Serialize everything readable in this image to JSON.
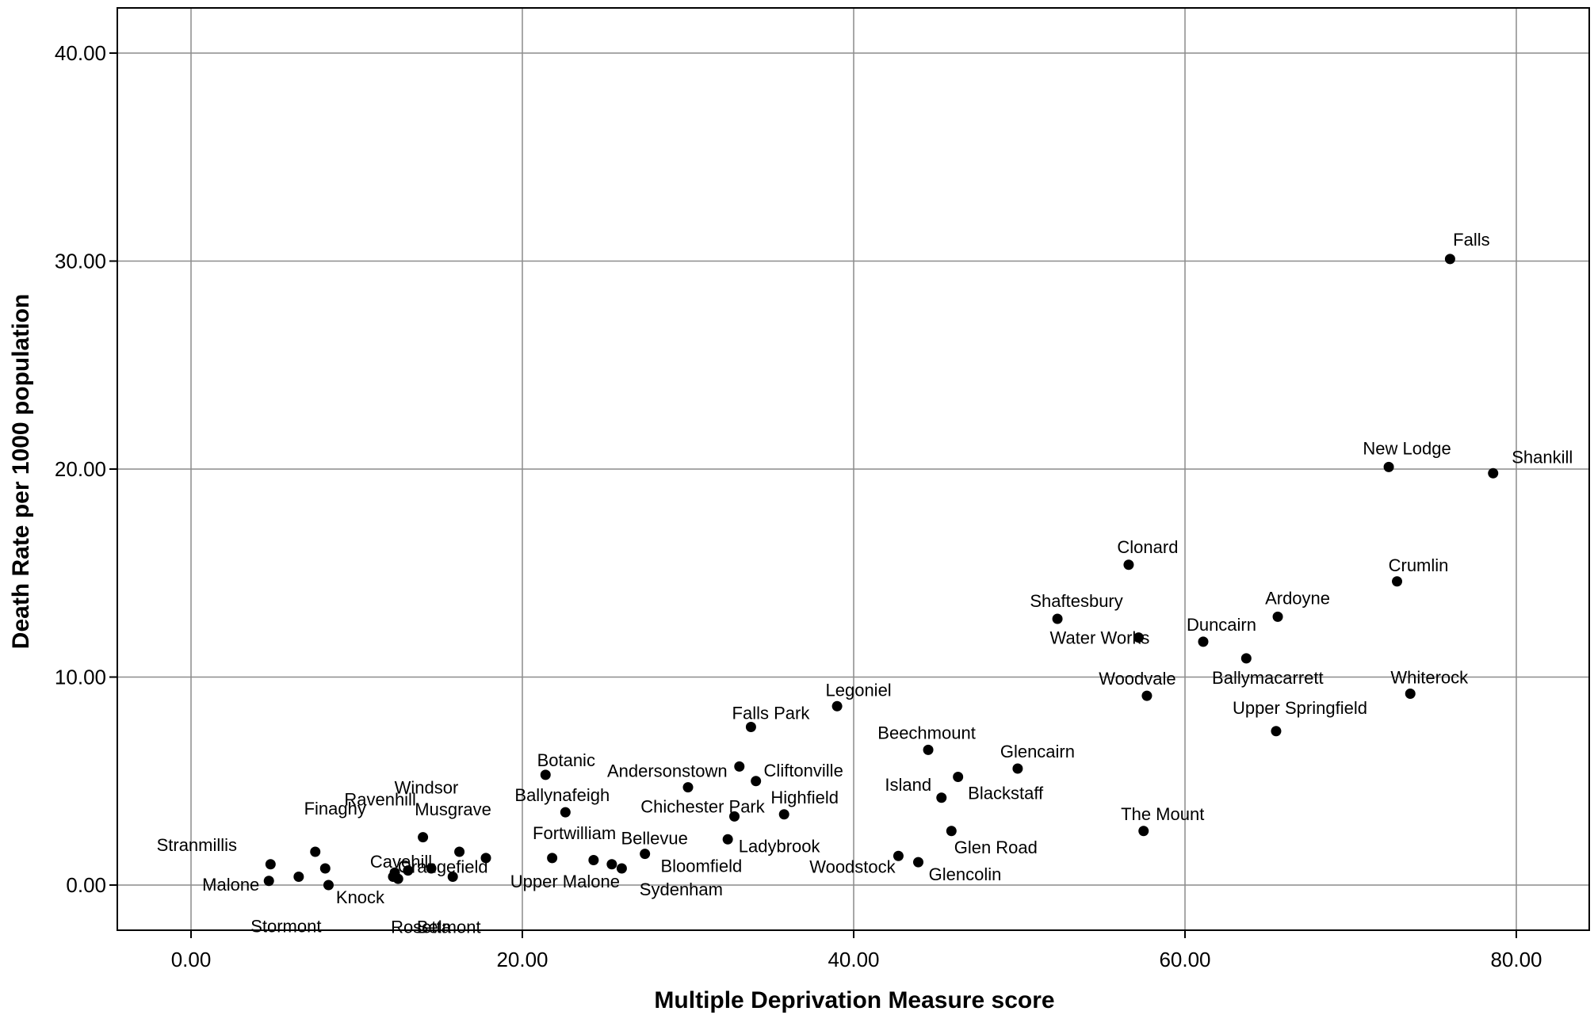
{
  "chart_data": {
    "type": "scatter",
    "title": "",
    "xlabel": "Multiple Deprivation Measure score",
    "ylabel": "Death Rate per 1000 population",
    "xlim": [
      -4.5,
      84.5
    ],
    "ylim": [
      -2.2,
      42.2
    ],
    "xticks": [
      0,
      20,
      40,
      60,
      80
    ],
    "yticks": [
      0,
      10,
      20,
      30,
      40
    ],
    "xtick_labels": [
      "0.00",
      "20.00",
      "40.00",
      "60.00",
      "80.00"
    ],
    "ytick_labels": [
      "0.00",
      "10.00",
      "20.00",
      "30.00",
      "40.00"
    ],
    "grid": true,
    "marker_color": "#000000",
    "points": [
      {
        "name": "Falls",
        "x": 76.0,
        "y": 30.1
      },
      {
        "name": "New Lodge",
        "x": 72.3,
        "y": 20.1
      },
      {
        "name": "Shankill",
        "x": 78.6,
        "y": 19.8
      },
      {
        "name": "Crumlin",
        "x": 72.8,
        "y": 14.6
      },
      {
        "name": "Clonard",
        "x": 56.6,
        "y": 15.4
      },
      {
        "name": "Ardoyne",
        "x": 65.6,
        "y": 12.9
      },
      {
        "name": "Shaftesbury",
        "x": 52.3,
        "y": 12.8
      },
      {
        "name": "Water Works",
        "x": 57.2,
        "y": 11.9
      },
      {
        "name": "Duncairn",
        "x": 61.1,
        "y": 11.7
      },
      {
        "name": "Ballymacarrett",
        "x": 63.7,
        "y": 10.9
      },
      {
        "name": "Woodvale",
        "x": 57.7,
        "y": 9.1
      },
      {
        "name": "Whiterock",
        "x": 73.6,
        "y": 9.2
      },
      {
        "name": "Upper Springfield",
        "x": 65.5,
        "y": 7.4
      },
      {
        "name": "Legoniel",
        "x": 39.0,
        "y": 8.6
      },
      {
        "name": "Falls Park",
        "x": 33.8,
        "y": 7.6
      },
      {
        "name": "Beechmount",
        "x": 44.5,
        "y": 6.5
      },
      {
        "name": "Glencairn",
        "x": 49.9,
        "y": 5.6
      },
      {
        "name": "Island",
        "x": 45.3,
        "y": 4.2
      },
      {
        "name": "Blackstaff",
        "x": 46.3,
        "y": 5.2
      },
      {
        "name": "The Mount",
        "x": 57.5,
        "y": 2.6
      },
      {
        "name": "Glen Road",
        "x": 45.9,
        "y": 2.6
      },
      {
        "name": "Glencolin",
        "x": 43.9,
        "y": 1.1
      },
      {
        "name": "Woodstock",
        "x": 42.7,
        "y": 1.4
      },
      {
        "name": "Andersonstown",
        "x": 33.1,
        "y": 5.7
      },
      {
        "name": "Cliftonville",
        "x": 34.1,
        "y": 5.0
      },
      {
        "name": "Highfield",
        "x": 35.8,
        "y": 3.4
      },
      {
        "name": "Chichester Park",
        "x": 32.8,
        "y": 3.3
      },
      {
        "name": "Ladybrook",
        "x": 32.4,
        "y": 2.2
      },
      {
        "name": "Botanic",
        "x": 21.4,
        "y": 5.3
      },
      {
        "name": "Windsor",
        "x": 30.0,
        "y": 4.7
      },
      {
        "name": "Ballynafeigh",
        "x": 22.6,
        "y": 3.5
      },
      {
        "name": "Fortwilliam",
        "x": 21.8,
        "y": 1.3
      },
      {
        "name": "Bellevue",
        "x": 27.4,
        "y": 1.5
      },
      {
        "name": "Bloomfield",
        "x": 24.3,
        "y": 1.2
      },
      {
        "name": "Upper Malone",
        "x": 25.4,
        "y": 1.0
      },
      {
        "name": "Sydenham",
        "x": 26.0,
        "y": 0.8
      },
      {
        "name": "Ravenhill",
        "x": 14.0,
        "y": 2.3
      },
      {
        "name": "Musgrave",
        "x": 16.2,
        "y": 1.6
      },
      {
        "name": "Finaghy",
        "x": 7.5,
        "y": 1.6
      },
      {
        "name": "Cavehill",
        "x": 17.8,
        "y": 1.3
      },
      {
        "name": "Orangefield",
        "x": 13.1,
        "y": 0.7
      },
      {
        "name": "Stranmillis",
        "x": 4.8,
        "y": 1.0
      },
      {
        "name": "Malone",
        "x": 4.7,
        "y": 0.2
      },
      {
        "name": "Knock",
        "x": 8.3,
        "y": 0.0
      },
      {
        "name": "Stormont",
        "x": 6.5,
        "y": 0.4
      },
      {
        "name": "Rosetta",
        "x": 12.2,
        "y": 0.4
      },
      {
        "name": "Belmont",
        "x": 15.8,
        "y": 0.4
      },
      {
        "name": "",
        "x": 8.1,
        "y": 0.8
      },
      {
        "name": "",
        "x": 12.3,
        "y": 0.6
      },
      {
        "name": "",
        "x": 12.5,
        "y": 0.3
      },
      {
        "name": "",
        "x": 14.5,
        "y": 0.8
      }
    ]
  }
}
